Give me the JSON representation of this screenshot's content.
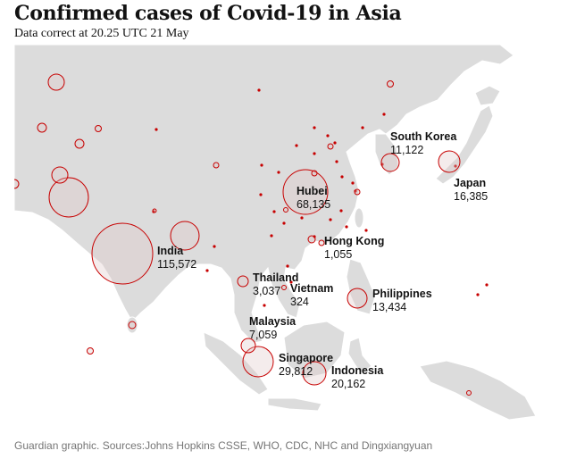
{
  "title": "Confirmed cases of Covid-19 in Asia",
  "subtitle": "Data correct at 20.25 UTC 21 May",
  "footer": "Guardian graphic. Sources:Johns Hopkins CSSE, WHO, CDC, NHC and Dingxiangyuan",
  "colors": {
    "bubble_stroke": "#c70000",
    "bubble_fill": "#e0c8c8",
    "land": "#dcdcdc"
  },
  "labels": [
    {
      "id": "south-korea",
      "name": "South Korea",
      "value": "11,122"
    },
    {
      "id": "japan",
      "name": "Japan",
      "value": "16,385"
    },
    {
      "id": "hubei",
      "name": "Hubei",
      "value": "68,135"
    },
    {
      "id": "india",
      "name": "India",
      "value": "115,572"
    },
    {
      "id": "hong-kong",
      "name": "Hong Kong",
      "value": "1,055"
    },
    {
      "id": "thailand",
      "name": "Thailand",
      "value": "3,037"
    },
    {
      "id": "vietnam",
      "name": "Vietnam",
      "value": "324"
    },
    {
      "id": "philippines",
      "name": "Philippines",
      "value": "13,434"
    },
    {
      "id": "malaysia",
      "name": "Malaysia",
      "value": "7,059"
    },
    {
      "id": "singapore",
      "name": "Singapore",
      "value": "29,812"
    },
    {
      "id": "indonesia",
      "name": "Indonesia",
      "value": "20,162"
    }
  ]
}
